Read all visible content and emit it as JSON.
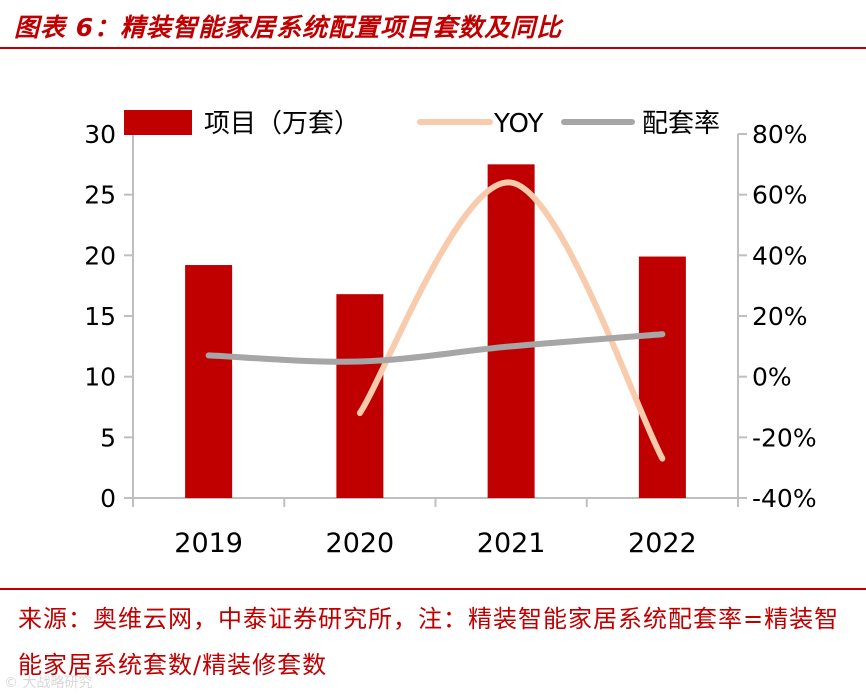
{
  "header": {
    "title": "图表 6：精装智能家居系统配置项目套数及同比"
  },
  "footer": {
    "source": "来源：奥维云网，中泰证券研究所，注：精装智能家居系统配套率=精装智能家居系统套数/精装修套数",
    "watermark": "© 大战略研究"
  },
  "chart_data": {
    "type": "bar",
    "title": "精装智能家居系统配置项目套数及同比",
    "categories": [
      "2019",
      "2020",
      "2021",
      "2022"
    ],
    "series": [
      {
        "name": "项目（万套）",
        "type": "bar",
        "axis": "left",
        "color": "#c00000",
        "values": [
          19.2,
          16.8,
          27.5,
          19.9
        ]
      },
      {
        "name": "YOY",
        "type": "line",
        "axis": "right",
        "color": "#f8cbad",
        "values": [
          null,
          -12,
          64,
          -27
        ]
      },
      {
        "name": "配套率",
        "type": "line",
        "axis": "right",
        "color": "#a6a6a6",
        "values": [
          7,
          5,
          10,
          14
        ]
      }
    ],
    "y_left": {
      "min": 0,
      "max": 30,
      "ticks": [
        "0",
        "5",
        "10",
        "15",
        "20",
        "25",
        "30"
      ]
    },
    "y_right": {
      "min": -40,
      "max": 80,
      "ticks": [
        "-40%",
        "-20%",
        "0%",
        "20%",
        "40%",
        "60%",
        "80%"
      ]
    },
    "legend": [
      "项目（万套）",
      "YOY",
      "配套率"
    ],
    "legend_position": "top",
    "grid": false
  }
}
